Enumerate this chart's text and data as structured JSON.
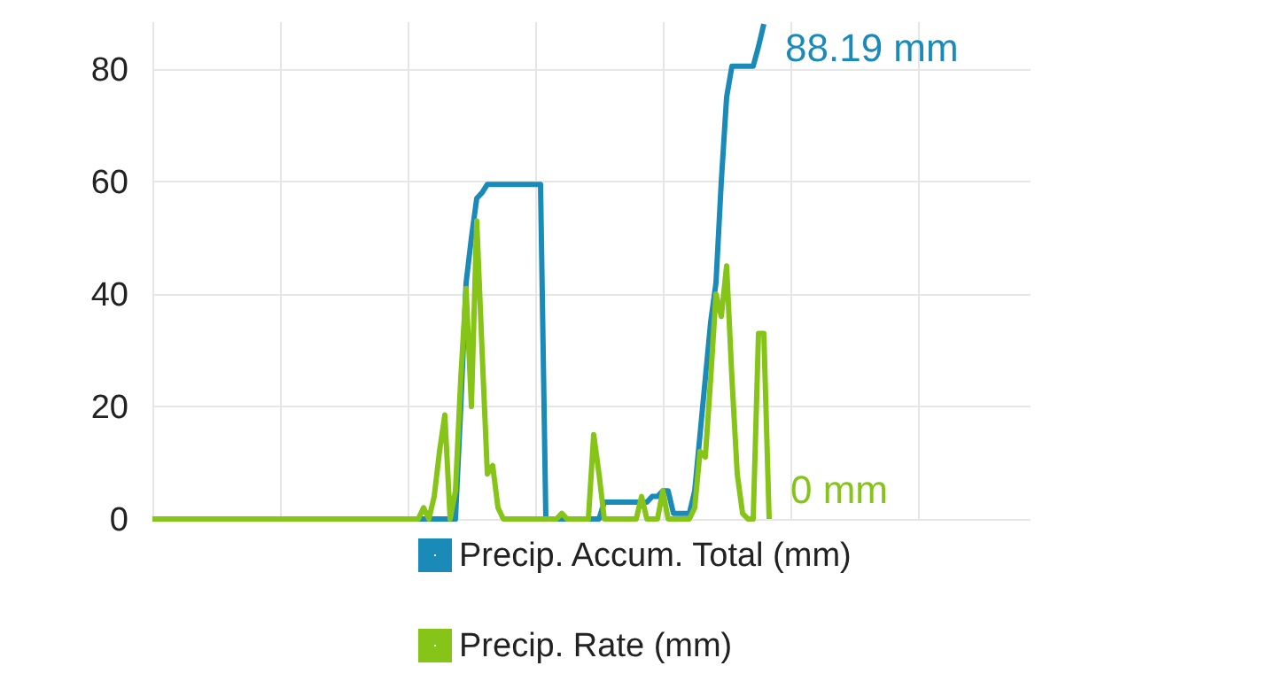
{
  "chart_data": {
    "type": "line",
    "categories": [
      null,
      null,
      null,
      null,
      null,
      null,
      null,
      null,
      null,
      null,
      null,
      null,
      null,
      null,
      null,
      null,
      null,
      null,
      null,
      null,
      null,
      null,
      null,
      null,
      null,
      null,
      null,
      null,
      null,
      null,
      null,
      null,
      null,
      null,
      null,
      null,
      null,
      null,
      null,
      null,
      null,
      null,
      null,
      null,
      null,
      null,
      null,
      null,
      null,
      null,
      null,
      null,
      null,
      null,
      null,
      null,
      null,
      null,
      null,
      null,
      null,
      null,
      null,
      null,
      null,
      null,
      null,
      null,
      null,
      null,
      null,
      null,
      null,
      null,
      null,
      null,
      null,
      null,
      null,
      null,
      null,
      null,
      null,
      null,
      null,
      null,
      null,
      null,
      null,
      null,
      null,
      null,
      null,
      null,
      null,
      null,
      null,
      null,
      null,
      null,
      null,
      null,
      null,
      null,
      null,
      null,
      null,
      null,
      null,
      null,
      null,
      null,
      null,
      null,
      null,
      null,
      null,
      null,
      null,
      null,
      null,
      null,
      null,
      null,
      null,
      null,
      null,
      null,
      null,
      null,
      null,
      null,
      null,
      null,
      null,
      null,
      null,
      null,
      null,
      null,
      null,
      null,
      null,
      null,
      null,
      null,
      null,
      null,
      null,
      null,
      null,
      null,
      null,
      null,
      null,
      null,
      null,
      null,
      null,
      null,
      null,
      null,
      null,
      null,
      null,
      null
    ],
    "series": [
      {
        "name": "Precip. Accum. Total (mm)",
        "color": "#1a8bb8",
        "values": [
          null,
          null,
          null,
          null,
          null,
          null,
          null,
          null,
          null,
          null,
          null,
          null,
          null,
          null,
          null,
          null,
          null,
          null,
          null,
          null,
          null,
          null,
          null,
          null,
          null,
          null,
          null,
          null,
          null,
          null,
          null,
          null,
          null,
          null,
          null,
          null,
          null,
          null,
          null,
          null,
          null,
          null,
          null,
          null,
          null,
          null,
          null,
          null,
          0,
          0,
          0,
          0,
          0,
          0,
          0,
          0,
          0,
          0,
          20,
          42,
          50,
          57,
          58,
          59.5,
          59.5,
          59.5,
          59.5,
          59.5,
          59.5,
          59.5,
          59.5,
          59.5,
          59.5,
          59.5,
          0,
          0,
          0,
          0,
          0,
          0,
          0,
          0,
          0,
          0,
          0,
          3,
          3,
          3,
          3,
          3,
          3,
          3,
          3,
          3,
          4,
          4,
          5,
          5,
          1,
          1,
          1,
          1,
          5,
          15,
          25,
          35,
          42,
          60,
          75,
          80.5,
          80.5,
          80.5,
          80.5,
          80.5,
          84,
          88,
          null,
          null,
          null,
          null,
          null,
          null,
          null,
          null,
          null,
          null,
          null,
          null,
          null,
          null,
          null,
          null,
          null,
          null,
          null,
          null,
          null,
          null,
          null,
          null,
          null,
          null,
          null,
          null,
          null,
          null,
          null,
          null,
          null,
          null,
          null,
          null,
          null,
          null,
          null,
          null,
          null,
          null,
          null,
          null,
          null,
          null,
          null,
          null,
          null,
          null
        ]
      },
      {
        "name": "Precip. Rate (mm)",
        "color": "#86c418",
        "values": [
          0,
          0,
          0,
          0,
          0,
          0,
          0,
          0,
          0,
          0,
          0,
          0,
          0,
          0,
          0,
          0,
          0,
          0,
          0,
          0,
          0,
          0,
          0,
          0,
          0,
          0,
          0,
          0,
          0,
          0,
          0,
          0,
          0,
          0,
          0,
          0,
          0,
          0,
          0,
          0,
          0,
          0,
          0,
          0,
          0,
          0,
          0,
          0,
          0,
          0,
          0,
          2,
          0,
          4,
          12,
          18.5,
          0,
          5,
          25,
          41,
          20,
          53,
          30,
          8,
          9.5,
          2,
          0,
          0,
          0,
          0,
          0,
          0,
          0,
          0,
          0,
          0,
          0,
          1,
          0,
          0,
          0,
          0,
          0,
          15,
          8,
          0,
          0,
          0,
          0,
          0,
          0,
          0,
          4,
          0,
          0,
          0,
          5,
          0,
          0,
          0,
          0,
          0,
          2,
          12,
          11,
          25,
          40,
          36,
          45,
          25,
          8,
          1,
          0,
          0,
          33,
          33,
          0,
          null,
          null,
          null,
          null,
          null,
          null,
          null,
          null,
          null,
          null,
          null,
          null,
          null,
          null,
          null,
          null,
          null,
          null,
          null,
          null,
          null,
          null,
          null,
          null,
          null,
          null,
          null,
          null,
          null,
          null,
          null,
          null,
          null,
          null,
          null,
          null,
          null,
          null,
          null,
          null,
          null,
          null,
          null,
          null,
          null,
          null,
          null,
          null,
          null
        ]
      }
    ],
    "ylim": [
      0,
      88.5
    ],
    "yticks": [
      0,
      20,
      40,
      60,
      80
    ],
    "grid": true,
    "legend": "bottom right",
    "tick_labels": "y",
    "annotations": [
      "88.19 mm",
      "0 mm"
    ]
  }
}
